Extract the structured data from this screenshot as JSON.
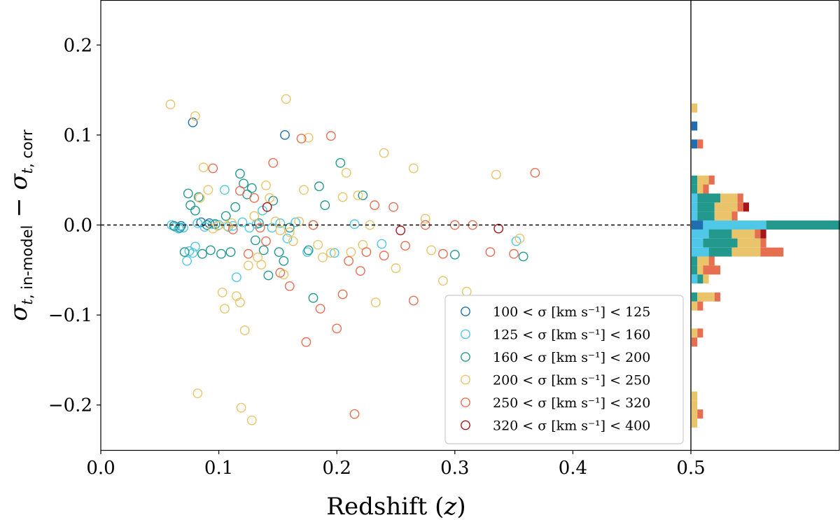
{
  "chart_data": {
    "type": "scatter",
    "xlabel": "Redshift (z)",
    "ylabel": "σt, in-model − σt, corr",
    "xlim": [
      0,
      0.5
    ],
    "ylim": [
      -0.25,
      0.25
    ],
    "x_ticks": [
      "0.0",
      "0.1",
      "0.2",
      "0.3",
      "0.4",
      "0.5"
    ],
    "y_ticks": [
      "0.2",
      "0.1",
      "0.0",
      "−0.1",
      "−0.2"
    ],
    "reference_line_y": 0,
    "legend_position": "lower-right",
    "grid": false,
    "series": [
      {
        "name": "100 < σ [km s⁻¹] < 125",
        "color": "#1f6fb0",
        "points": [
          [
            0.078,
            0.114
          ],
          [
            0.068,
            -0.001
          ],
          [
            0.085,
            0.003
          ],
          [
            0.092,
            0.002
          ],
          [
            0.156,
            0.1
          ]
        ]
      },
      {
        "name": "125 < σ [km s⁻¹] < 160",
        "color": "#4fc8e8",
        "points": [
          [
            0.06,
            0.0
          ],
          [
            0.063,
            -0.002
          ],
          [
            0.066,
            -0.004
          ],
          [
            0.07,
            -0.003
          ],
          [
            0.073,
            -0.04
          ],
          [
            0.075,
            -0.029
          ],
          [
            0.078,
            -0.031
          ],
          [
            0.08,
            -0.024
          ],
          [
            0.082,
            0.002
          ],
          [
            0.088,
            -0.002
          ],
          [
            0.095,
            0.001
          ],
          [
            0.1,
            0.0
          ],
          [
            0.105,
            0.039
          ],
          [
            0.108,
            -0.002
          ],
          [
            0.112,
            -0.001
          ],
          [
            0.115,
            -0.058
          ],
          [
            0.12,
            0.003
          ],
          [
            0.126,
            -0.003
          ],
          [
            0.132,
            0.001
          ],
          [
            0.137,
            0.016
          ],
          [
            0.145,
            -0.003
          ],
          [
            0.152,
            0.002
          ],
          [
            0.158,
            -0.015
          ],
          [
            0.165,
            0.003
          ],
          [
            0.175,
            -0.03
          ],
          [
            0.198,
            -0.031
          ],
          [
            0.215,
            0.001
          ],
          [
            0.238,
            -0.021
          ],
          [
            0.352,
            -0.018
          ]
        ]
      },
      {
        "name": "160 < σ [km s⁻¹] < 200",
        "color": "#23998e",
        "points": [
          [
            0.062,
            -0.001
          ],
          [
            0.067,
            -0.003
          ],
          [
            0.071,
            -0.03
          ],
          [
            0.074,
            0.035
          ],
          [
            0.076,
            0.022
          ],
          [
            0.08,
            0.016
          ],
          [
            0.083,
            0.031
          ],
          [
            0.086,
            -0.032
          ],
          [
            0.09,
            0.0
          ],
          [
            0.093,
            -0.028
          ],
          [
            0.097,
            0.001
          ],
          [
            0.102,
            -0.032
          ],
          [
            0.106,
            0.01
          ],
          [
            0.11,
            -0.03
          ],
          [
            0.114,
            0.02
          ],
          [
            0.118,
            0.057
          ],
          [
            0.121,
            0.046
          ],
          [
            0.124,
            0.034
          ],
          [
            0.128,
            0.041
          ],
          [
            0.131,
            -0.017
          ],
          [
            0.134,
            0.002
          ],
          [
            0.138,
            -0.028
          ],
          [
            0.142,
            -0.056
          ],
          [
            0.146,
            0.027
          ],
          [
            0.151,
            -0.03
          ],
          [
            0.155,
            -0.04
          ],
          [
            0.16,
            -0.003
          ],
          [
            0.176,
            -0.028
          ],
          [
            0.18,
            -0.081
          ],
          [
            0.185,
            0.043
          ],
          [
            0.19,
            0.022
          ],
          [
            0.203,
            0.069
          ],
          [
            0.222,
            0.033
          ],
          [
            0.3,
            -0.033
          ],
          [
            0.358,
            -0.035
          ]
        ]
      },
      {
        "name": "200 < σ [km s⁻¹] < 250",
        "color": "#e9c46a",
        "points": [
          [
            0.059,
            0.134
          ],
          [
            0.08,
            0.121
          ],
          [
            0.082,
            -0.187
          ],
          [
            0.084,
            0.03
          ],
          [
            0.087,
            0.064
          ],
          [
            0.091,
            0.039
          ],
          [
            0.095,
            -0.004
          ],
          [
            0.099,
            -0.001
          ],
          [
            0.103,
            -0.075
          ],
          [
            0.105,
            -0.093
          ],
          [
            0.107,
            -0.001
          ],
          [
            0.111,
            0.002
          ],
          [
            0.115,
            -0.079
          ],
          [
            0.118,
            -0.086
          ],
          [
            0.119,
            -0.203
          ],
          [
            0.122,
            -0.117
          ],
          [
            0.125,
            -0.045
          ],
          [
            0.128,
            -0.217
          ],
          [
            0.13,
            0.01
          ],
          [
            0.133,
            -0.036
          ],
          [
            0.136,
            -0.044
          ],
          [
            0.14,
            0.044
          ],
          [
            0.143,
            0.03
          ],
          [
            0.148,
            0.004
          ],
          [
            0.152,
            -0.006
          ],
          [
            0.155,
            -0.055
          ],
          [
            0.157,
            0.14
          ],
          [
            0.16,
            -0.008
          ],
          [
            0.163,
            -0.018
          ],
          [
            0.168,
            0.004
          ],
          [
            0.172,
            0.039
          ],
          [
            0.176,
            0.097
          ],
          [
            0.18,
            0.0
          ],
          [
            0.184,
            -0.022
          ],
          [
            0.188,
            -0.036
          ],
          [
            0.195,
            -0.031
          ],
          [
            0.205,
            0.031
          ],
          [
            0.208,
            0.058
          ],
          [
            0.212,
            -0.03
          ],
          [
            0.218,
            0.033
          ],
          [
            0.222,
            -0.022
          ],
          [
            0.228,
            0.0
          ],
          [
            0.233,
            -0.086
          ],
          [
            0.24,
            0.08
          ],
          [
            0.25,
            -0.048
          ],
          [
            0.265,
            0.063
          ],
          [
            0.275,
            0.007
          ],
          [
            0.28,
            -0.028
          ],
          [
            0.29,
            -0.062
          ],
          [
            0.31,
            -0.074
          ],
          [
            0.335,
            0.056
          ],
          [
            0.355,
            -0.015
          ]
        ]
      },
      {
        "name": "250 < σ [km s⁻¹] < 320",
        "color": "#e76f51",
        "points": [
          [
            0.095,
            0.063
          ],
          [
            0.112,
            -0.005
          ],
          [
            0.118,
            0.038
          ],
          [
            0.125,
            -0.032
          ],
          [
            0.13,
            0.03
          ],
          [
            0.135,
            -0.003
          ],
          [
            0.14,
            -0.018
          ],
          [
            0.146,
            0.069
          ],
          [
            0.152,
            -0.053
          ],
          [
            0.16,
            -0.068
          ],
          [
            0.17,
            0.096
          ],
          [
            0.174,
            -0.13
          ],
          [
            0.18,
            0.0
          ],
          [
            0.186,
            -0.093
          ],
          [
            0.195,
            0.099
          ],
          [
            0.2,
            -0.115
          ],
          [
            0.205,
            -0.077
          ],
          [
            0.21,
            -0.04
          ],
          [
            0.215,
            -0.21
          ],
          [
            0.22,
            -0.051
          ],
          [
            0.225,
            -0.03
          ],
          [
            0.232,
            0.022
          ],
          [
            0.24,
            -0.034
          ],
          [
            0.248,
            0.02
          ],
          [
            0.258,
            -0.023
          ],
          [
            0.265,
            -0.084
          ],
          [
            0.275,
            0.0
          ],
          [
            0.29,
            -0.032
          ],
          [
            0.3,
            0.0
          ],
          [
            0.315,
            0.0
          ],
          [
            0.33,
            -0.03
          ],
          [
            0.35,
            -0.032
          ],
          [
            0.368,
            0.058
          ]
        ]
      },
      {
        "name": "320 < σ [km s⁻¹] < 400",
        "color": "#a4161a",
        "points": [
          [
            0.141,
            0.02
          ],
          [
            0.254,
            -0.006
          ],
          [
            0.337,
            -0.004
          ]
        ]
      }
    ],
    "histogram": {
      "orientation": "horizontal",
      "stacked": true,
      "bin_width": 0.01,
      "bins": [
        {
          "y": 0.13,
          "counts": [
            0,
            0,
            0,
            1,
            0,
            0
          ]
        },
        {
          "y": 0.11,
          "counts": [
            1,
            0,
            0,
            0,
            0,
            0
          ]
        },
        {
          "y": 0.09,
          "counts": [
            1,
            0,
            0,
            0,
            1,
            0
          ]
        },
        {
          "y": 0.05,
          "counts": [
            0,
            0,
            1,
            2,
            1,
            0
          ]
        },
        {
          "y": 0.04,
          "counts": [
            0,
            0,
            1,
            1,
            1,
            0
          ]
        },
        {
          "y": 0.03,
          "counts": [
            0,
            1,
            4,
            3,
            1,
            0
          ]
        },
        {
          "y": 0.02,
          "counts": [
            0,
            1,
            3,
            4,
            1,
            1
          ]
        },
        {
          "y": 0.01,
          "counts": [
            0,
            1,
            3,
            3,
            1,
            0
          ]
        },
        {
          "y": 0.0,
          "counts": [
            2,
            11,
            16,
            16,
            7,
            1
          ]
        },
        {
          "y": -0.01,
          "counts": [
            0,
            3,
            4,
            4,
            1,
            1
          ]
        },
        {
          "y": -0.02,
          "counts": [
            0,
            2,
            6,
            4,
            1,
            0
          ]
        },
        {
          "y": -0.03,
          "counts": [
            0,
            3,
            4,
            5,
            4,
            0
          ]
        },
        {
          "y": -0.04,
          "counts": [
            0,
            0,
            1,
            2,
            1,
            0
          ]
        },
        {
          "y": -0.05,
          "counts": [
            0,
            0,
            1,
            1,
            3,
            0
          ]
        },
        {
          "y": -0.06,
          "counts": [
            0,
            1,
            1,
            1,
            0,
            0
          ]
        },
        {
          "y": -0.08,
          "counts": [
            0,
            0,
            1,
            3,
            1,
            0
          ]
        },
        {
          "y": -0.09,
          "counts": [
            0,
            0,
            0,
            1,
            1,
            0
          ]
        },
        {
          "y": -0.12,
          "counts": [
            0,
            0,
            0,
            1,
            1,
            0
          ]
        },
        {
          "y": -0.13,
          "counts": [
            0,
            0,
            0,
            0,
            1,
            0
          ]
        },
        {
          "y": -0.19,
          "counts": [
            0,
            0,
            0,
            1,
            0,
            0
          ]
        },
        {
          "y": -0.2,
          "counts": [
            0,
            0,
            0,
            1,
            0,
            0
          ]
        },
        {
          "y": -0.21,
          "counts": [
            0,
            0,
            0,
            1,
            1,
            0
          ]
        },
        {
          "y": -0.22,
          "counts": [
            0,
            0,
            0,
            1,
            0,
            0
          ]
        }
      ]
    }
  }
}
